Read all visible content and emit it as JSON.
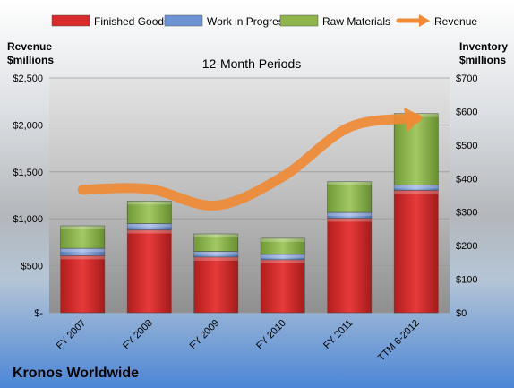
{
  "chart_data": {
    "type": "bar",
    "title": "12-Month Periods",
    "footer_title": "Kronos Worldwide",
    "categories": [
      "FY 2007",
      "FY 2008",
      "FY 2009",
      "FY 2010",
      "FY 2011",
      "TTM 6-2012"
    ],
    "series": [
      {
        "name": "Finished Goods",
        "type": "stacked-bar",
        "axis": "right",
        "color": "#d92b2b",
        "values": [
          170,
          247,
          166,
          158,
          282,
          365
        ]
      },
      {
        "name": "Work in Progress",
        "type": "stacked-bar",
        "axis": "right",
        "color": "#6d93d4",
        "values": [
          22,
          19,
          17,
          16,
          17,
          16
        ]
      },
      {
        "name": "Raw Materials",
        "type": "stacked-bar",
        "axis": "right",
        "color": "#8db54a",
        "values": [
          67,
          67,
          52,
          48,
          92,
          213
        ]
      },
      {
        "name": "Revenue",
        "type": "line",
        "axis": "left",
        "color": "#f08a35",
        "values": [
          1310,
          1317,
          1142,
          1449,
          1976,
          2071
        ]
      }
    ],
    "left_axis": {
      "label_line1": "Revenue",
      "label_line2": "$millions",
      "ticks": [
        "$-",
        "$500",
        "$1,000",
        "$1,500",
        "$2,000",
        "$2,500"
      ],
      "ylim": [
        0,
        2500
      ]
    },
    "right_axis": {
      "label_line1": "Inventory",
      "label_line2": "$millions",
      "ticks": [
        "$0",
        "$100",
        "$200",
        "$300",
        "$400",
        "$500",
        "$600",
        "$700"
      ],
      "ylim": [
        0,
        700
      ]
    },
    "legend": {
      "placement": "top"
    },
    "grid": true
  }
}
